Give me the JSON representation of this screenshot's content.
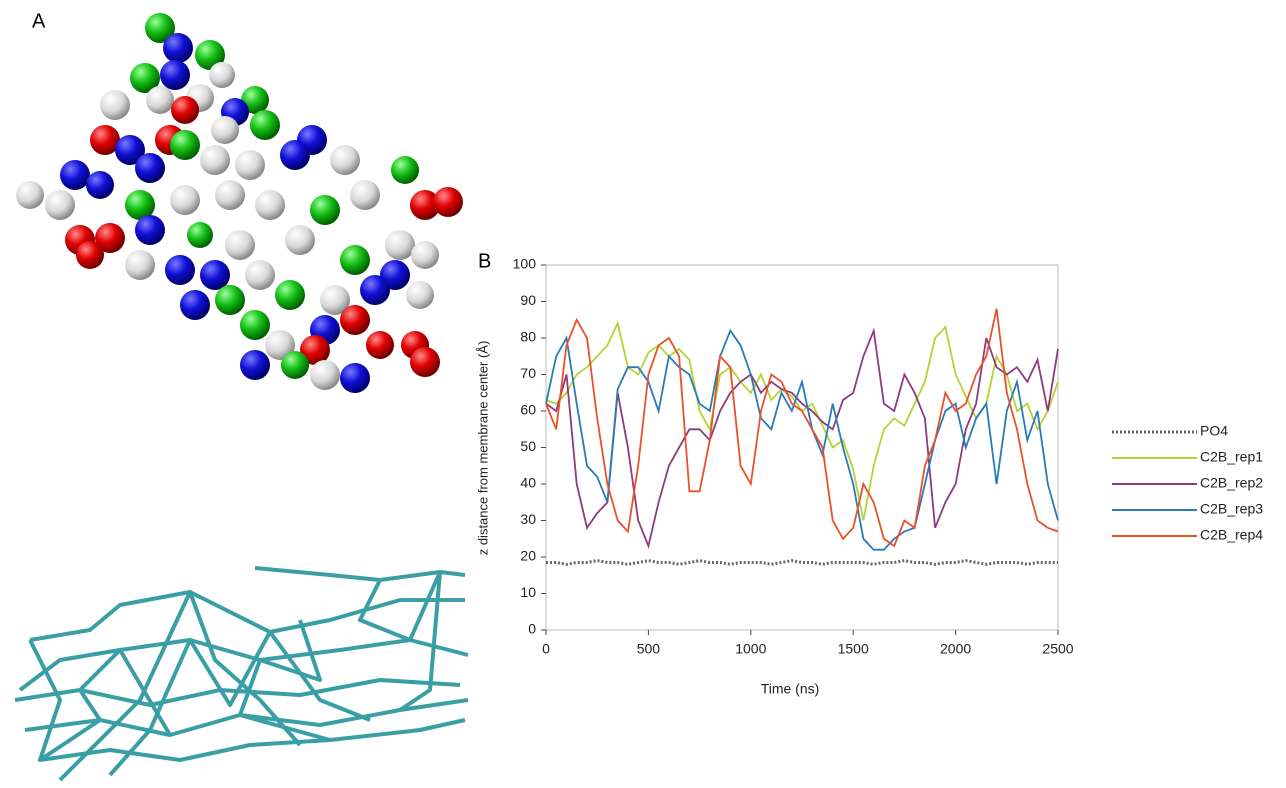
{
  "panel_labels": [
    "A",
    "B"
  ],
  "chart_data": {
    "type": "line",
    "x_label": "Time (ns)",
    "y_label": "z distance from membrane center (Å)",
    "x": [
      0,
      50,
      100,
      150,
      200,
      250,
      300,
      350,
      400,
      450,
      500,
      550,
      600,
      650,
      700,
      750,
      800,
      850,
      900,
      950,
      1000,
      1050,
      1100,
      1150,
      1200,
      1250,
      1300,
      1350,
      1400,
      1450,
      1500,
      1550,
      1600,
      1650,
      1700,
      1750,
      1800,
      1850,
      1900,
      1950,
      2000,
      2050,
      2100,
      2150,
      2200,
      2250,
      2300,
      2350,
      2400,
      2450,
      2500
    ],
    "xlim": [
      0,
      2500
    ],
    "xticks": [
      0,
      500,
      1000,
      1500,
      2000,
      2500
    ],
    "ylim": [
      0,
      100
    ],
    "yticks": [
      0,
      10,
      20,
      30,
      40,
      50,
      60,
      70,
      80,
      90,
      100
    ],
    "legend": "right",
    "series": [
      {
        "name": "PO4",
        "color": "#666666",
        "dashed": true,
        "values": [
          18.5,
          18.5,
          18,
          18.5,
          18.5,
          19,
          18.5,
          18.5,
          18,
          18.5,
          19,
          18.5,
          18.5,
          18,
          18.5,
          19,
          18.5,
          18.5,
          18,
          18.5,
          18.5,
          18.5,
          18,
          18.5,
          19,
          18.5,
          18.5,
          18,
          18.5,
          18.5,
          18.5,
          18.5,
          18,
          18.5,
          18.5,
          19,
          18.5,
          18.5,
          18,
          18.5,
          18.5,
          19,
          18.5,
          18,
          18.5,
          18.5,
          18.5,
          18,
          18.5,
          18.5,
          18.5
        ]
      },
      {
        "name": "C2B_rep1",
        "color": "#b4d334",
        "values": [
          63,
          62,
          65,
          70,
          72,
          75,
          78,
          84,
          72,
          70,
          76,
          78,
          75,
          77,
          74,
          60,
          55,
          70,
          72,
          68,
          65,
          70,
          63,
          66,
          64,
          60,
          62,
          56,
          50,
          52,
          44,
          30,
          45,
          55,
          58,
          56,
          62,
          68,
          80,
          83,
          70,
          64,
          58,
          62,
          75,
          70,
          60,
          62,
          55,
          60,
          68
        ]
      },
      {
        "name": "C2B_rep2",
        "color": "#8e3a7e",
        "values": [
          62,
          60,
          70,
          40,
          28,
          32,
          35,
          65,
          50,
          30,
          23,
          35,
          45,
          50,
          55,
          55,
          52,
          60,
          65,
          68,
          70,
          65,
          68,
          66,
          65,
          62,
          60,
          57,
          55,
          63,
          65,
          75,
          82,
          62,
          60,
          70,
          65,
          58,
          28,
          35,
          40,
          55,
          62,
          80,
          72,
          70,
          72,
          68,
          74,
          60,
          77
        ]
      },
      {
        "name": "C2B_rep3",
        "color": "#2a7ab9",
        "values": [
          62,
          75,
          80,
          62,
          45,
          42,
          35,
          66,
          72,
          72,
          68,
          60,
          75,
          72,
          70,
          62,
          60,
          75,
          82,
          78,
          70,
          58,
          55,
          65,
          60,
          68,
          55,
          48,
          62,
          50,
          40,
          25,
          22,
          22,
          25,
          27,
          28,
          40,
          52,
          60,
          62,
          50,
          58,
          62,
          40,
          60,
          68,
          52,
          60,
          40,
          30
        ]
      },
      {
        "name": "C2B_rep4",
        "color": "#e8512a",
        "values": [
          62,
          55,
          78,
          85,
          80,
          58,
          40,
          30,
          27,
          45,
          70,
          78,
          80,
          75,
          38,
          38,
          52,
          75,
          72,
          45,
          40,
          60,
          70,
          68,
          62,
          60,
          55,
          50,
          30,
          25,
          28,
          40,
          35,
          25,
          23,
          30,
          28,
          45,
          52,
          65,
          60,
          62,
          70,
          75,
          88,
          65,
          55,
          40,
          30,
          28,
          27
        ]
      }
    ]
  }
}
